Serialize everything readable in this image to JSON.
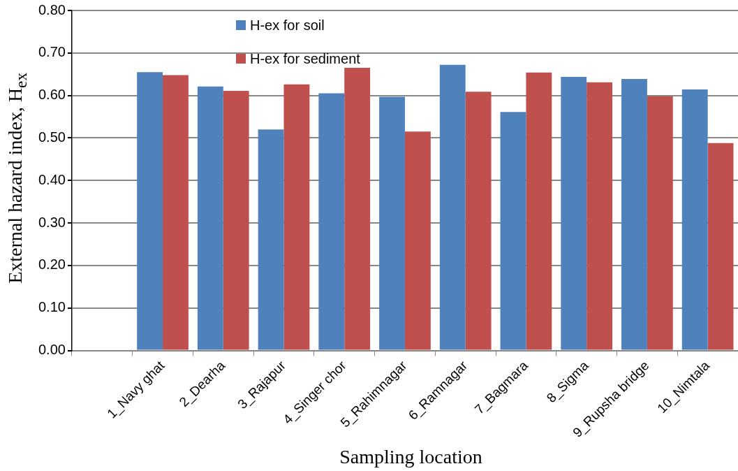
{
  "chart_data": {
    "type": "bar",
    "xlabel": "Sampling location",
    "ylabel": "External hazard index, H$_{ex}$",
    "categories": [
      null,
      "1_Navy ghat",
      "2_Dearha",
      "3_Rajapur",
      "4_Singer chor",
      "5_Rahimnagar",
      "6_Ramnagar",
      "7_Bagmara",
      "8_Sigma",
      "9_Rupsha bridge",
      "10_Nimtala"
    ],
    "series": [
      {
        "name": "H-ex for soil",
        "color": "#4f81bd",
        "values": [
          null,
          0.655,
          0.621,
          0.52,
          0.605,
          0.597,
          0.672,
          0.561,
          0.644,
          0.639,
          0.614
        ]
      },
      {
        "name": "H-ex for sediment",
        "color": "#c0504d",
        "values": [
          null,
          0.648,
          0.611,
          0.626,
          0.665,
          0.515,
          0.609,
          0.654,
          0.631,
          0.598,
          0.488
        ]
      }
    ],
    "ylim": [
      0,
      0.8
    ],
    "yticks": [
      {
        "value": 0,
        "label": "0.00"
      },
      {
        "value": 0.1,
        "label": "0.10"
      },
      {
        "value": 0.2,
        "label": "0.20"
      },
      {
        "value": 0.3,
        "label": "0.30"
      },
      {
        "value": 0.4,
        "label": "0.40"
      },
      {
        "value": 0.5,
        "label": "0.50"
      },
      {
        "value": 0.6,
        "label": "0.60"
      },
      {
        "value": 0.7,
        "label": "0.70"
      },
      {
        "value": 0.8,
        "label": "0.80"
      }
    ],
    "grid": "y",
    "legend": "top"
  }
}
